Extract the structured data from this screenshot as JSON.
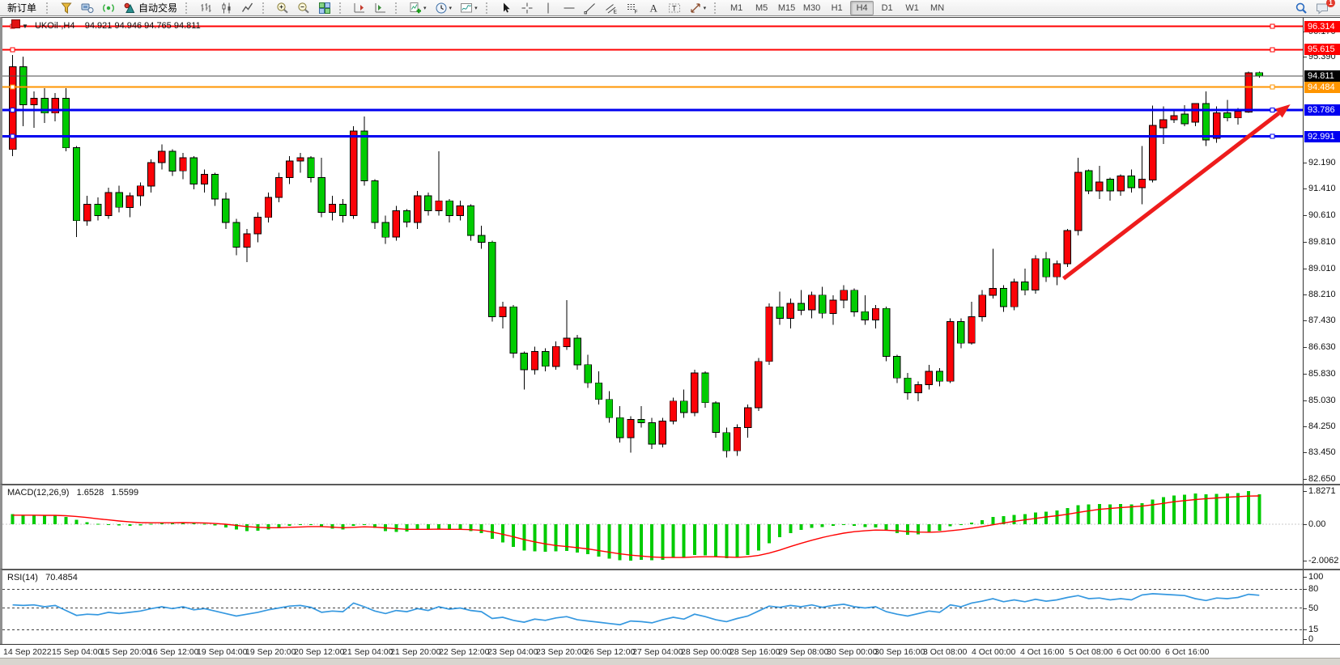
{
  "toolbar": {
    "new_order_label": "新订单",
    "autotrading_label": "自动交易",
    "left_icons": [
      "funnel-icon",
      "terminal-icon",
      "signal-icon"
    ],
    "chart_type_icons": [
      "bar-chart-icon",
      "candlestick-chart-icon",
      "line-chart-icon"
    ],
    "zoom_icons": [
      "zoom-in-icon",
      "zoom-out-icon",
      "tile-windows-icon"
    ],
    "shift_icons": [
      "chart-shift-icon",
      "auto-scroll-icon"
    ],
    "dropdown_icons": [
      "indicators-icon",
      "periods-icon",
      "templates-icon"
    ],
    "draw_icons": [
      "cursor-icon",
      "crosshair-icon",
      "vertical-line-icon",
      "horizontal-line-icon",
      "trendline-icon",
      "equidistant-channel-icon",
      "fibonacci-icon",
      "text-icon",
      "text-label-icon",
      "arrows-icon"
    ],
    "timeframes": [
      "M1",
      "M5",
      "M15",
      "M30",
      "H1",
      "H4",
      "D1",
      "W1",
      "MN"
    ],
    "active_timeframe": "H4",
    "right_icons": [
      "search-icon",
      "chat-icon"
    ],
    "chat_badge": "1"
  },
  "chart": {
    "symbol_period": "UKOil-,H4",
    "ohlc_values": "94.921 94.946 94.765 94.811"
  },
  "colors": {
    "candle_up": "#fb0207",
    "candle_down": "#00cb00",
    "wick": "#000000",
    "macd_histogram": "#00cb00",
    "macd_signal": "#ff0000",
    "rsi_line": "#3598e0",
    "price_line": "#4a4a4a"
  },
  "chart_data": {
    "type": "candlestick",
    "symbol": "UKOil",
    "timeframe": "H4",
    "main": {
      "ylim": [
        82.48,
        96.55
      ],
      "yticks": [
        "96.170",
        "95.390",
        "92.190",
        "91.410",
        "90.610",
        "89.810",
        "89.010",
        "88.210",
        "87.430",
        "86.630",
        "85.830",
        "85.030",
        "84.250",
        "83.450",
        "82.650"
      ],
      "price_badges": [
        {
          "label": "96.314",
          "price": 96.314,
          "bg": "#ff0000"
        },
        {
          "label": "95.615",
          "price": 95.615,
          "bg": "#ff0000"
        },
        {
          "label": "94.811",
          "price": 94.811,
          "bg": "#000000"
        },
        {
          "label": "94.484",
          "price": 94.484,
          "bg": "#ff9500"
        },
        {
          "label": "93.786",
          "price": 93.786,
          "bg": "#0000f0"
        },
        {
          "label": "92.991",
          "price": 92.991,
          "bg": "#0000f0"
        }
      ],
      "hlines": [
        {
          "price": 96.314,
          "color": "#ff0000",
          "width": 2
        },
        {
          "price": 95.615,
          "color": "#ff0000",
          "width": 2
        },
        {
          "price": 94.484,
          "color": "#ff9500",
          "width": 2
        },
        {
          "price": 93.786,
          "color": "#0000f0",
          "width": 3
        },
        {
          "price": 92.991,
          "color": "#0000f0",
          "width": 3
        }
      ],
      "price_line": {
        "price": 94.811
      },
      "trend_arrow": {
        "x1_frac": 0.814,
        "price1": 88.7,
        "x2_frac": 0.988,
        "price2": 93.96,
        "color": "#ee1c1c"
      },
      "candles": [
        [
          92.6,
          95.45,
          92.4,
          95.1
        ],
        [
          95.1,
          95.4,
          93.3,
          93.95
        ],
        [
          93.95,
          94.35,
          93.25,
          94.15
        ],
        [
          94.15,
          94.45,
          93.4,
          93.7
        ],
        [
          93.7,
          94.3,
          93.45,
          94.15
        ],
        [
          94.15,
          94.45,
          92.55,
          92.65
        ],
        [
          92.65,
          92.7,
          89.95,
          90.45
        ],
        [
          90.45,
          91.2,
          90.3,
          90.95
        ],
        [
          90.95,
          91.15,
          90.45,
          90.6
        ],
        [
          90.6,
          91.45,
          90.5,
          91.3
        ],
        [
          91.3,
          91.5,
          90.7,
          90.85
        ],
        [
          90.85,
          91.3,
          90.55,
          91.2
        ],
        [
          91.2,
          91.6,
          90.9,
          91.5
        ],
        [
          91.5,
          92.3,
          91.3,
          92.2
        ],
        [
          92.2,
          92.75,
          92.0,
          92.55
        ],
        [
          92.55,
          92.6,
          91.8,
          91.95
        ],
        [
          91.95,
          92.5,
          91.7,
          92.35
        ],
        [
          92.35,
          92.4,
          91.4,
          91.55
        ],
        [
          91.55,
          92.0,
          91.3,
          91.85
        ],
        [
          91.85,
          91.9,
          90.9,
          91.1
        ],
        [
          91.1,
          91.3,
          90.2,
          90.4
        ],
        [
          90.4,
          90.5,
          89.4,
          89.65
        ],
        [
          89.65,
          90.2,
          89.2,
          90.05
        ],
        [
          90.05,
          90.7,
          89.8,
          90.55
        ],
        [
          90.55,
          91.3,
          90.4,
          91.15
        ],
        [
          91.15,
          91.9,
          91.0,
          91.75
        ],
        [
          91.75,
          92.4,
          91.55,
          92.25
        ],
        [
          92.25,
          92.5,
          91.9,
          92.35
        ],
        [
          92.35,
          92.4,
          91.6,
          91.75
        ],
        [
          91.75,
          92.35,
          90.55,
          90.7
        ],
        [
          90.7,
          91.2,
          90.45,
          90.95
        ],
        [
          90.95,
          91.1,
          90.4,
          90.6
        ],
        [
          90.6,
          93.3,
          90.5,
          93.15
        ],
        [
          93.15,
          93.6,
          91.5,
          91.65
        ],
        [
          91.65,
          91.7,
          90.2,
          90.4
        ],
        [
          90.4,
          90.6,
          89.75,
          89.95
        ],
        [
          89.95,
          90.9,
          89.85,
          90.75
        ],
        [
          90.75,
          90.8,
          90.25,
          90.4
        ],
        [
          90.4,
          91.35,
          90.2,
          91.2
        ],
        [
          91.2,
          91.3,
          90.6,
          90.75
        ],
        [
          90.75,
          92.55,
          90.6,
          91.05
        ],
        [
          91.05,
          91.1,
          90.4,
          90.6
        ],
        [
          90.6,
          91.05,
          90.45,
          90.9
        ],
        [
          90.9,
          90.95,
          89.85,
          90.0
        ],
        [
          90.0,
          90.3,
          89.6,
          89.8
        ],
        [
          89.8,
          89.85,
          87.4,
          87.55
        ],
        [
          87.55,
          88.0,
          87.2,
          87.85
        ],
        [
          87.85,
          87.9,
          86.3,
          86.45
        ],
        [
          86.45,
          86.5,
          85.35,
          85.95
        ],
        [
          85.95,
          86.65,
          85.8,
          86.5
        ],
        [
          86.5,
          86.6,
          85.9,
          86.05
        ],
        [
          86.05,
          86.8,
          85.95,
          86.65
        ],
        [
          86.65,
          88.05,
          86.55,
          86.9
        ],
        [
          86.9,
          87.0,
          85.95,
          86.1
        ],
        [
          86.1,
          86.4,
          85.4,
          85.55
        ],
        [
          85.55,
          85.9,
          84.9,
          85.05
        ],
        [
          85.05,
          85.3,
          84.35,
          84.5
        ],
        [
          84.5,
          84.85,
          83.75,
          83.9
        ],
        [
          83.9,
          84.55,
          83.45,
          84.45
        ],
        [
          84.45,
          84.85,
          84.2,
          84.35
        ],
        [
          84.35,
          84.5,
          83.55,
          83.7
        ],
        [
          83.7,
          84.5,
          83.6,
          84.4
        ],
        [
          84.4,
          85.1,
          84.3,
          85.0
        ],
        [
          85.0,
          85.35,
          84.5,
          84.65
        ],
        [
          84.65,
          85.95,
          84.55,
          85.85
        ],
        [
          85.85,
          85.9,
          84.8,
          84.95
        ],
        [
          84.95,
          85.0,
          83.9,
          84.05
        ],
        [
          84.05,
          84.2,
          83.3,
          83.5
        ],
        [
          83.5,
          84.3,
          83.35,
          84.2
        ],
        [
          84.2,
          84.9,
          83.9,
          84.8
        ],
        [
          84.8,
          86.3,
          84.7,
          86.2
        ],
        [
          86.2,
          87.95,
          86.1,
          87.85
        ],
        [
          87.85,
          88.3,
          87.3,
          87.5
        ],
        [
          87.5,
          88.1,
          87.2,
          87.95
        ],
        [
          87.95,
          88.35,
          87.6,
          87.75
        ],
        [
          87.75,
          88.3,
          87.5,
          88.2
        ],
        [
          88.2,
          88.45,
          87.5,
          87.65
        ],
        [
          87.65,
          88.2,
          87.3,
          88.05
        ],
        [
          88.05,
          88.5,
          87.8,
          88.35
        ],
        [
          88.35,
          88.4,
          87.55,
          87.7
        ],
        [
          87.7,
          88.2,
          87.3,
          87.45
        ],
        [
          87.45,
          87.9,
          87.2,
          87.8
        ],
        [
          87.8,
          87.85,
          86.2,
          86.35
        ],
        [
          86.35,
          86.4,
          85.55,
          85.7
        ],
        [
          85.7,
          85.85,
          85.05,
          85.25
        ],
        [
          85.25,
          85.6,
          85.0,
          85.5
        ],
        [
          85.5,
          86.1,
          85.35,
          85.9
        ],
        [
          85.9,
          86.0,
          85.45,
          85.6
        ],
        [
          85.6,
          87.5,
          85.55,
          87.4
        ],
        [
          87.4,
          87.5,
          86.6,
          86.75
        ],
        [
          86.75,
          88.0,
          86.7,
          87.55
        ],
        [
          87.55,
          88.35,
          87.4,
          88.2
        ],
        [
          88.2,
          89.6,
          88.1,
          88.4
        ],
        [
          88.4,
          88.5,
          87.7,
          87.85
        ],
        [
          87.85,
          88.7,
          87.75,
          88.6
        ],
        [
          88.6,
          89.0,
          88.2,
          88.35
        ],
        [
          88.35,
          89.4,
          88.25,
          89.3
        ],
        [
          89.3,
          89.5,
          88.6,
          88.75
        ],
        [
          88.75,
          89.25,
          88.5,
          89.15
        ],
        [
          89.15,
          90.2,
          89.05,
          90.15
        ],
        [
          90.15,
          92.35,
          90.0,
          91.91
        ],
        [
          91.96,
          92.0,
          91.25,
          91.35
        ],
        [
          91.35,
          92.1,
          91.1,
          91.62
        ],
        [
          91.7,
          91.75,
          91.05,
          91.35
        ],
        [
          91.35,
          91.85,
          91.2,
          91.8
        ],
        [
          91.8,
          92.0,
          91.3,
          91.45
        ],
        [
          91.45,
          92.7,
          90.95,
          91.7
        ],
        [
          91.67,
          93.93,
          91.6,
          93.32
        ],
        [
          93.25,
          93.9,
          92.76,
          93.5
        ],
        [
          93.5,
          93.75,
          93.4,
          93.62
        ],
        [
          93.67,
          93.94,
          93.3,
          93.38
        ],
        [
          93.42,
          94.0,
          93.3,
          93.98
        ],
        [
          93.98,
          94.35,
          92.7,
          92.88
        ],
        [
          92.93,
          93.9,
          92.8,
          93.7
        ],
        [
          93.7,
          94.1,
          93.45,
          93.55
        ],
        [
          93.55,
          93.85,
          93.35,
          93.75
        ],
        [
          93.73,
          94.95,
          93.7,
          94.91
        ],
        [
          94.92,
          94.95,
          94.77,
          94.81
        ]
      ]
    },
    "macd": {
      "label": "MACD(12,26,9)",
      "value_main": "1.6528",
      "value_signal": "1.5599",
      "ylim": [
        -2.45,
        2.05
      ],
      "yticks": [
        "1.8271",
        "0.00",
        "-2.0062"
      ],
      "histogram": [
        0.55,
        0.52,
        0.5,
        0.48,
        0.46,
        0.4,
        0.25,
        0.12,
        0.02,
        -0.02,
        -0.06,
        -0.08,
        -0.06,
        0.02,
        0.08,
        0.1,
        0.1,
        0.06,
        0.02,
        -0.06,
        -0.18,
        -0.3,
        -0.38,
        -0.36,
        -0.28,
        -0.18,
        -0.1,
        -0.05,
        -0.05,
        -0.15,
        -0.25,
        -0.3,
        -0.1,
        -0.05,
        -0.2,
        -0.38,
        -0.42,
        -0.4,
        -0.3,
        -0.28,
        -0.25,
        -0.3,
        -0.3,
        -0.38,
        -0.5,
        -0.8,
        -1.0,
        -1.25,
        -1.45,
        -1.5,
        -1.52,
        -1.5,
        -1.48,
        -1.55,
        -1.65,
        -1.78,
        -1.9,
        -1.98,
        -2.0,
        -1.95,
        -1.98,
        -1.95,
        -1.85,
        -1.82,
        -1.7,
        -1.72,
        -1.8,
        -1.88,
        -1.85,
        -1.7,
        -1.45,
        -1.05,
        -0.72,
        -0.48,
        -0.32,
        -0.2,
        -0.15,
        -0.1,
        -0.05,
        -0.08,
        -0.15,
        -0.18,
        -0.35,
        -0.5,
        -0.58,
        -0.55,
        -0.45,
        -0.35,
        -0.12,
        -0.05,
        0.08,
        0.22,
        0.4,
        0.45,
        0.52,
        0.55,
        0.65,
        0.7,
        0.75,
        0.9,
        1.05,
        1.1,
        1.12,
        1.1,
        1.12,
        1.1,
        1.15,
        1.35,
        1.5,
        1.58,
        1.62,
        1.7,
        1.65,
        1.68,
        1.7,
        1.72,
        1.8271,
        1.6528
      ],
      "signal": [
        0.5,
        0.5,
        0.5,
        0.49,
        0.49,
        0.47,
        0.43,
        0.37,
        0.3,
        0.24,
        0.18,
        0.13,
        0.09,
        0.08,
        0.08,
        0.08,
        0.09,
        0.08,
        0.07,
        0.04,
        0.0,
        -0.06,
        -0.13,
        -0.17,
        -0.19,
        -0.19,
        -0.17,
        -0.15,
        -0.13,
        -0.13,
        -0.16,
        -0.19,
        -0.17,
        -0.14,
        -0.16,
        -0.2,
        -0.24,
        -0.28,
        -0.28,
        -0.28,
        -0.27,
        -0.28,
        -0.28,
        -0.3,
        -0.34,
        -0.43,
        -0.55,
        -0.69,
        -0.84,
        -0.97,
        -1.08,
        -1.17,
        -1.23,
        -1.29,
        -1.36,
        -1.45,
        -1.54,
        -1.63,
        -1.7,
        -1.75,
        -1.8,
        -1.83,
        -1.83,
        -1.83,
        -1.8,
        -1.79,
        -1.79,
        -1.81,
        -1.82,
        -1.79,
        -1.72,
        -1.59,
        -1.42,
        -1.23,
        -1.05,
        -0.88,
        -0.73,
        -0.6,
        -0.49,
        -0.41,
        -0.36,
        -0.32,
        -0.33,
        -0.36,
        -0.4,
        -0.43,
        -0.44,
        -0.42,
        -0.36,
        -0.3,
        -0.22,
        -0.13,
        -0.03,
        0.07,
        0.16,
        0.24,
        0.32,
        0.4,
        0.47,
        0.55,
        0.65,
        0.74,
        0.82,
        0.87,
        0.92,
        0.96,
        1.0,
        1.07,
        1.15,
        1.24,
        1.3,
        1.36,
        1.41,
        1.45,
        1.49,
        1.52,
        1.55,
        1.5599
      ]
    },
    "rsi": {
      "label": "RSI(14)",
      "value": "70.4854",
      "ylim": [
        0,
        100
      ],
      "yticks": [
        "100",
        "80",
        "50",
        "15",
        "0"
      ],
      "levels": [
        80,
        50,
        15
      ],
      "values": [
        55,
        54,
        55,
        52,
        54,
        46,
        38,
        40,
        39,
        43,
        41,
        43,
        45,
        49,
        52,
        49,
        52,
        47,
        49,
        45,
        41,
        37,
        40,
        43,
        47,
        50,
        53,
        54,
        51,
        43,
        45,
        44,
        58,
        52,
        45,
        41,
        46,
        44,
        49,
        46,
        52,
        48,
        50,
        46,
        44,
        33,
        35,
        30,
        27,
        32,
        30,
        34,
        36,
        31,
        29,
        27,
        25,
        23,
        29,
        28,
        26,
        31,
        35,
        32,
        40,
        36,
        31,
        28,
        33,
        37,
        45,
        53,
        51,
        54,
        52,
        55,
        51,
        54,
        56,
        52,
        50,
        52,
        44,
        40,
        37,
        41,
        45,
        43,
        55,
        52,
        58,
        61,
        65,
        60,
        63,
        60,
        64,
        61,
        63,
        67,
        70,
        65,
        66,
        63,
        65,
        63,
        71,
        73,
        72,
        71,
        70,
        65,
        62,
        66,
        65,
        67,
        72,
        70.4854
      ]
    },
    "time_labels": [
      "14 Sep 2022",
      "15 Sep 04:00",
      "15 Sep 20:00",
      "16 Sep 12:00",
      "19 Sep 04:00",
      "19 Sep 20:00",
      "20 Sep 12:00",
      "21 Sep 04:00",
      "21 Sep 20:00",
      "22 Sep 12:00",
      "23 Sep 04:00",
      "23 Sep 20:00",
      "26 Sep 12:00",
      "27 Sep 04:00",
      "28 Sep 00:00",
      "28 Sep 16:00",
      "29 Sep 08:00",
      "30 Sep 00:00",
      "30 Sep 16:00",
      "3 Oct 08:00",
      "4 Oct 00:00",
      "4 Oct 16:00",
      "5 Oct 08:00",
      "6 Oct 00:00",
      "6 Oct 16:00"
    ]
  }
}
